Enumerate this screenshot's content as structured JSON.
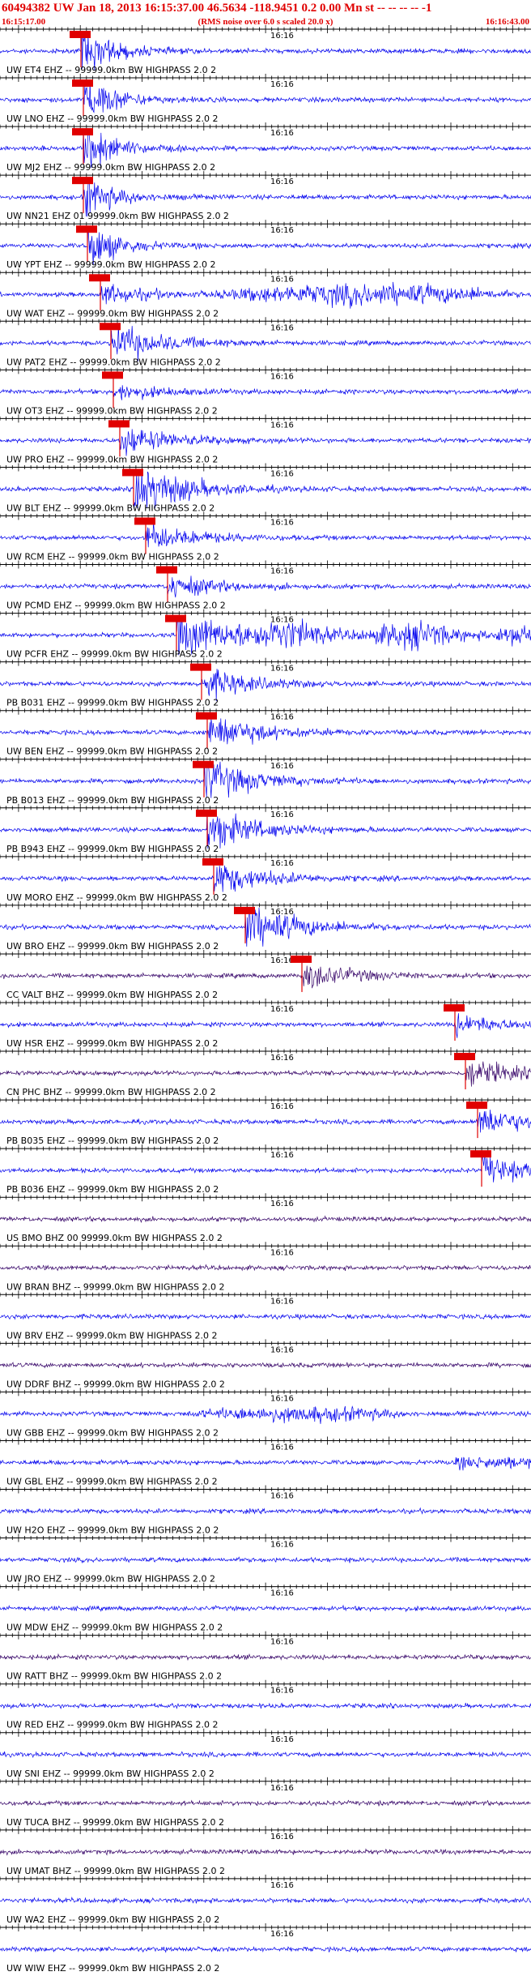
{
  "header": {
    "title": "60494382 UW Jan 18, 2013 16:15:37.00   46.5634 -118.9451  0.2 0.00 Mn st -- -- -- --  -1",
    "start": "16:15:17.00",
    "note": "(RMS noise over 6.0 s scaled 20.0 x)",
    "end": "16:16:43.00"
  },
  "time_label": "16:16",
  "traces": [
    {
      "label": "UW ET4 EHZ -- 99999.0km BW  HIGHPASS  2.0  2"
    },
    {
      "label": "UW LNO EHZ -- 99999.0km BW  HIGHPASS  2.0  2"
    },
    {
      "label": "UW MJ2 EHZ -- 99999.0km BW  HIGHPASS  2.0  2"
    },
    {
      "label": "UW NN21 EHZ 01 99999.0km BW  HIGHPASS  2.0  2"
    },
    {
      "label": "UW YPT EHZ -- 99999.0km BW  HIGHPASS  2.0  2"
    },
    {
      "label": "UW WAT EHZ -- 99999.0km BW  HIGHPASS  2.0  2"
    },
    {
      "label": "UW PAT2 EHZ -- 99999.0km BW  HIGHPASS  2.0  2"
    },
    {
      "label": "UW OT3 EHZ -- 99999.0km BW  HIGHPASS  2.0  2"
    },
    {
      "label": "UW PRO EHZ -- 99999.0km BW  HIGHPASS  2.0  2"
    },
    {
      "label": "UW BLT EHZ -- 99999.0km BW  HIGHPASS  2.0  2"
    },
    {
      "label": "UW RCM EHZ -- 99999.0km BW  HIGHPASS  2.0  2"
    },
    {
      "label": "UW PCMD EHZ -- 99999.0km BW  HIGHPASS  2.0  2"
    },
    {
      "label": "UW PCFR EHZ -- 99999.0km BW  HIGHPASS  2.0  2"
    },
    {
      "label": "PB B031 EHZ -- 99999.0km BW  HIGHPASS  2.0  2"
    },
    {
      "label": "UW BEN EHZ -- 99999.0km BW  HIGHPASS  2.0  2"
    },
    {
      "label": "PB B013 EHZ -- 99999.0km BW  HIGHPASS  2.0  2"
    },
    {
      "label": "PB B943 EHZ -- 99999.0km BW  HIGHPASS  2.0  2"
    },
    {
      "label": "UW MORO EHZ -- 99999.0km BW  HIGHPASS  2.0  2"
    },
    {
      "label": "UW BRO EHZ -- 99999.0km BW  HIGHPASS  2.0  2"
    },
    {
      "label": "CC VALT BHZ -- 99999.0km BW  HIGHPASS  2.0  2"
    },
    {
      "label": "UW HSR EHZ -- 99999.0km BW  HIGHPASS  2.0  2"
    },
    {
      "label": "CN PHC BHZ -- 99999.0km BW  HIGHPASS  2.0  2"
    },
    {
      "label": "PB B035 EHZ -- 99999.0km BW  HIGHPASS  2.0  2"
    },
    {
      "label": "PB B036 EHZ -- 99999.0km BW  HIGHPASS  2.0  2"
    },
    {
      "label": "US BMO BHZ 00 99999.0km BW  HIGHPASS  2.0  2"
    },
    {
      "label": "UW BRAN BHZ -- 99999.0km BW  HIGHPASS  2.0  2"
    },
    {
      "label": "UW BRV EHZ -- 99999.0km BW  HIGHPASS  2.0  2"
    },
    {
      "label": "UW DDRF BHZ -- 99999.0km BW  HIGHPASS  2.0  2"
    },
    {
      "label": "UW GBB EHZ -- 99999.0km BW  HIGHPASS  2.0  2"
    },
    {
      "label": "UW GBL EHZ -- 99999.0km BW  HIGHPASS  2.0  2"
    },
    {
      "label": "UW H2O EHZ -- 99999.0km BW  HIGHPASS  2.0  2"
    },
    {
      "label": "UW JRO EHZ -- 99999.0km BW  HIGHPASS  2.0  2"
    },
    {
      "label": "UW MDW EHZ -- 99999.0km BW  HIGHPASS  2.0  2"
    },
    {
      "label": "UW RATT BHZ -- 99999.0km BW  HIGHPASS  2.0  2"
    },
    {
      "label": "UW RED EHZ -- 99999.0km BW  HIGHPASS  2.0  2"
    },
    {
      "label": "UW SNI EHZ -- 99999.0km BW  HIGHPASS  2.0  2"
    },
    {
      "label": "UW TUCA BHZ -- 99999.0km BW  HIGHPASS  2.0  2"
    },
    {
      "label": "UW UMAT BHZ -- 99999.0km BW  HIGHPASS  2.0  2"
    },
    {
      "label": "UW WA2 EHZ -- 99999.0km BW  HIGHPASS  2.0  2"
    },
    {
      "label": "UW WIW EHZ -- 99999.0km BW  HIGHPASS  2.0  2"
    }
  ]
}
